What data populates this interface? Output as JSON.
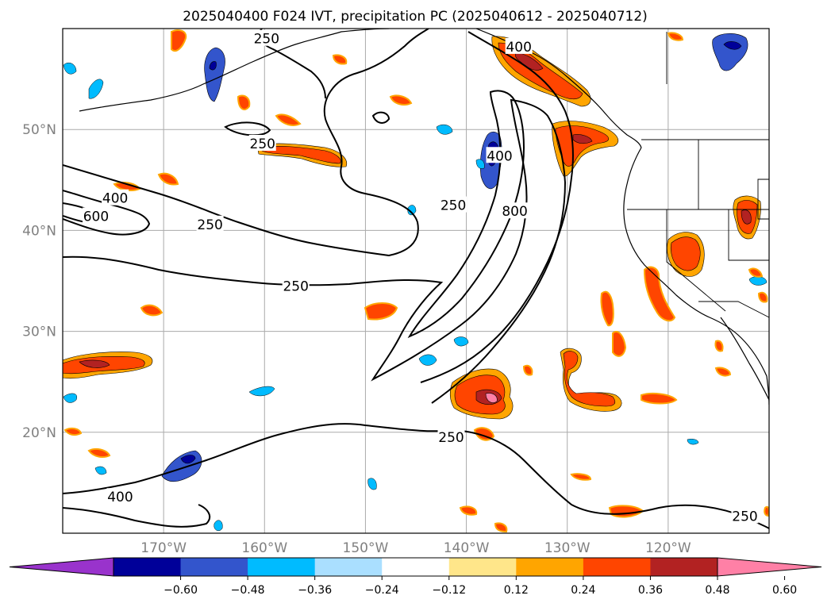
{
  "title": "2025040400 F024 IVT, precipitation PC (2025040612 - 2025040712)",
  "map": {
    "lat_range": [
      10,
      60
    ],
    "lon_range": [
      -180,
      -110
    ],
    "grid": true,
    "lat_labels": [
      {
        "text": "20°N",
        "lat": 20
      },
      {
        "text": "30°N",
        "lat": 30
      },
      {
        "text": "40°N",
        "lat": 40
      },
      {
        "text": "50°N",
        "lat": 50
      }
    ],
    "lon_labels": [
      {
        "text": "170°W",
        "lon": -170
      },
      {
        "text": "160°W",
        "lon": -160
      },
      {
        "text": "150°W",
        "lon": -150
      },
      {
        "text": "140°W",
        "lon": -140
      },
      {
        "text": "130°W",
        "lon": -130
      },
      {
        "text": "120°W",
        "lon": -120
      }
    ]
  },
  "contour_labels": [
    {
      "text": "250",
      "lon": -159.8,
      "lat": 59.0
    },
    {
      "text": "400",
      "lon": -134.8,
      "lat": 58.2
    },
    {
      "text": "250",
      "lon": -160.2,
      "lat": 48.6
    },
    {
      "text": "400",
      "lon": -174.8,
      "lat": 43.2
    },
    {
      "text": "600",
      "lon": -176.7,
      "lat": 41.4
    },
    {
      "text": "250",
      "lon": -165.4,
      "lat": 40.6
    },
    {
      "text": "250",
      "lon": -156.9,
      "lat": 34.5
    },
    {
      "text": "250",
      "lon": -141.3,
      "lat": 42.5
    },
    {
      "text": "800",
      "lon": -135.2,
      "lat": 41.9
    },
    {
      "text": "400",
      "lon": -136.7,
      "lat": 47.4
    },
    {
      "text": "250",
      "lon": -141.5,
      "lat": 19.5
    },
    {
      "text": "400",
      "lon": -174.3,
      "lat": 13.6
    },
    {
      "text": "250",
      "lon": -112.4,
      "lat": 11.7
    }
  ],
  "colorbar": {
    "colors": [
      "#9933cc",
      "#000099",
      "#3355cc",
      "#00bbff",
      "#aadfff",
      "#ffffff",
      "#ffe68a",
      "#ffa500",
      "#ff4500",
      "#b22222",
      "#ff80a6"
    ],
    "tick_labels": [
      "−0.60",
      "−0.48",
      "−0.36",
      "−0.24",
      "−0.12",
      "0.12",
      "0.24",
      "0.36",
      "0.48",
      "0.60"
    ],
    "tick_values": [
      -0.6,
      -0.48,
      -0.36,
      -0.24,
      -0.12,
      0.12,
      0.24,
      0.36,
      0.48,
      0.6
    ]
  }
}
